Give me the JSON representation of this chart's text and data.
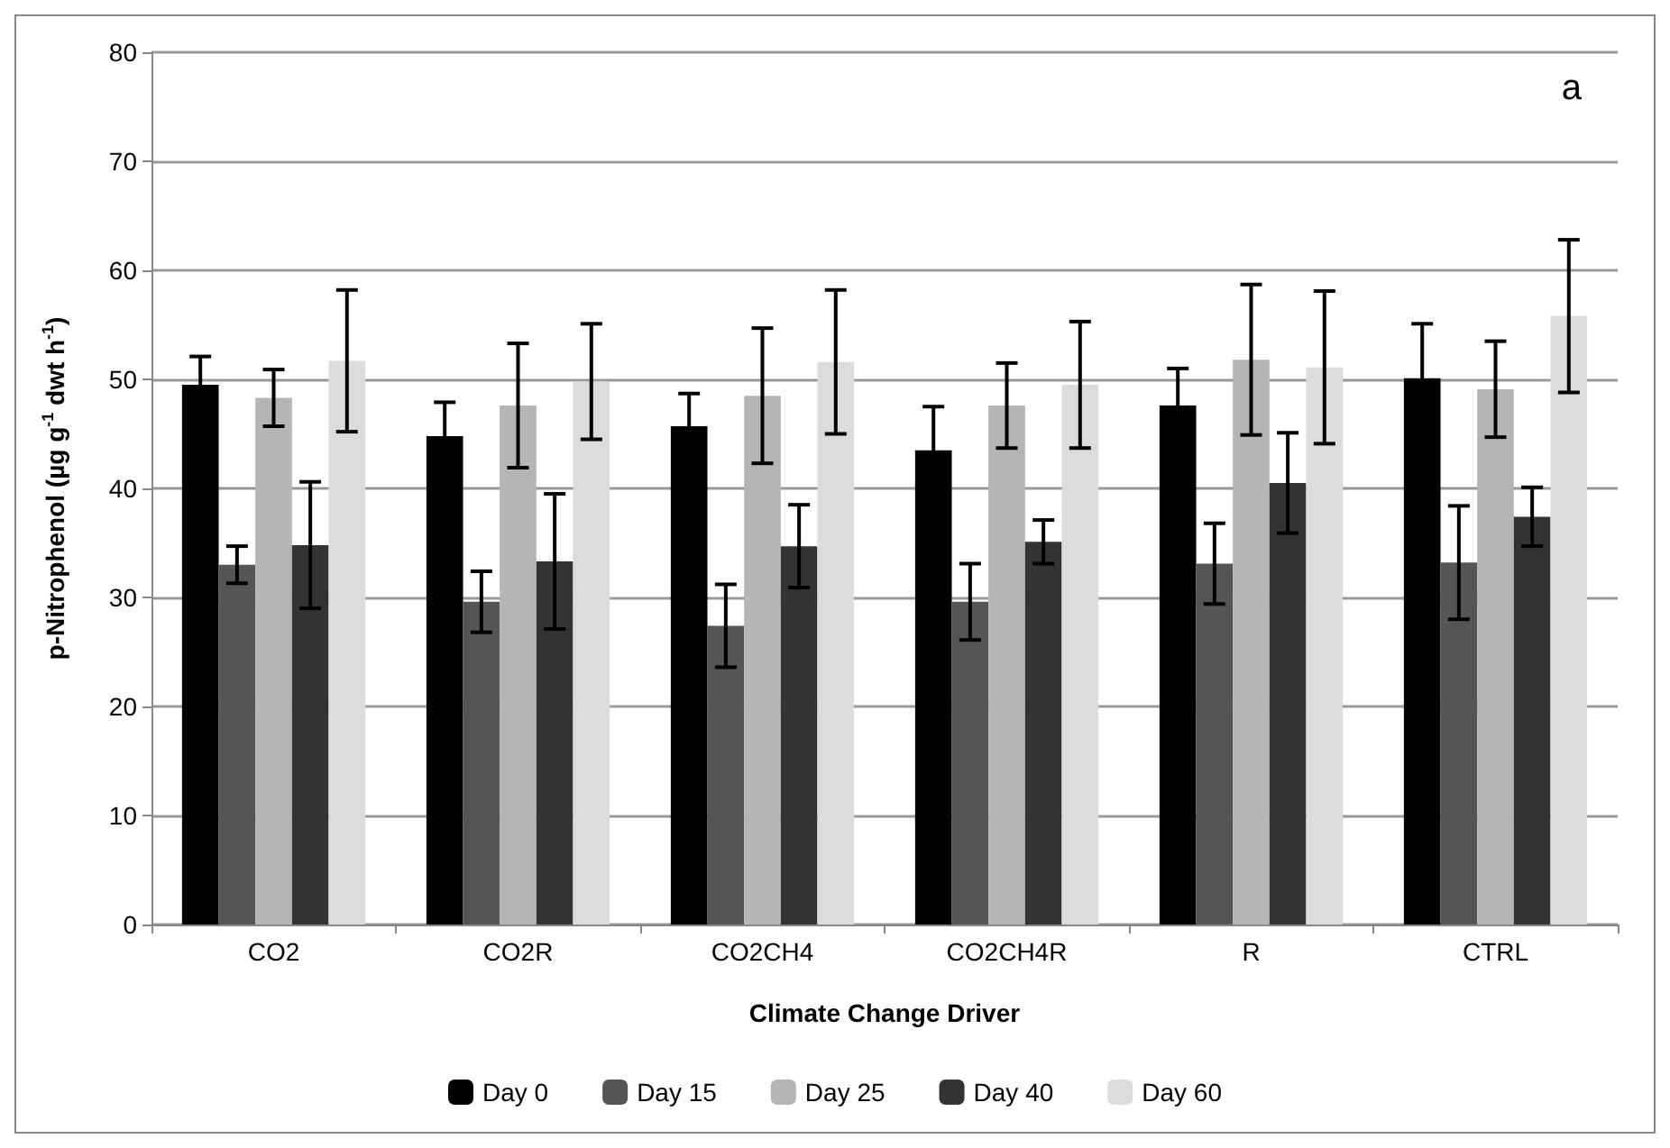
{
  "chart_data": {
    "type": "bar",
    "xlabel": "Climate Change Driver",
    "ylabel": "p-Nitrophenol (µg g$^{-1}$ dwt h$^{-1}$)",
    "categories": [
      "CO2",
      "CO2R",
      "CO2CH4",
      "CO2CH4R",
      "R",
      "CTRL"
    ],
    "series": [
      {
        "name": "Day 0",
        "color": "#000000",
        "values": [
          49.5,
          44.8,
          45.7,
          43.5,
          47.6,
          50.1
        ],
        "errors": [
          2.6,
          3.1,
          3.0,
          4.0,
          3.4,
          5.0
        ]
      },
      {
        "name": "Day 15",
        "color": "#555555",
        "values": [
          33.0,
          29.6,
          27.4,
          29.6,
          33.1,
          33.2
        ],
        "errors": [
          1.7,
          2.8,
          3.8,
          3.5,
          3.7,
          5.2
        ]
      },
      {
        "name": "Day 25",
        "color": "#b5b5b5",
        "values": [
          48.3,
          47.6,
          48.5,
          47.6,
          51.8,
          49.1
        ],
        "errors": [
          2.6,
          5.7,
          6.2,
          3.9,
          6.9,
          4.4
        ]
      },
      {
        "name": "Day 40",
        "color": "#333333",
        "values": [
          34.8,
          33.3,
          34.7,
          35.1,
          40.5,
          37.4
        ],
        "errors": [
          5.8,
          6.2,
          3.8,
          2.0,
          4.6,
          2.7
        ]
      },
      {
        "name": "Day 60",
        "color": "#dcdcdc",
        "values": [
          51.7,
          49.8,
          51.6,
          49.5,
          51.1,
          55.8
        ],
        "errors": [
          6.5,
          5.3,
          6.6,
          5.8,
          7.0,
          7.0
        ]
      }
    ],
    "ylim": [
      0,
      80
    ],
    "yticks": [
      0,
      10,
      20,
      30,
      40,
      50,
      60,
      70,
      80
    ],
    "grid": "y",
    "legend": "bottom",
    "annotations": [
      "a"
    ]
  }
}
